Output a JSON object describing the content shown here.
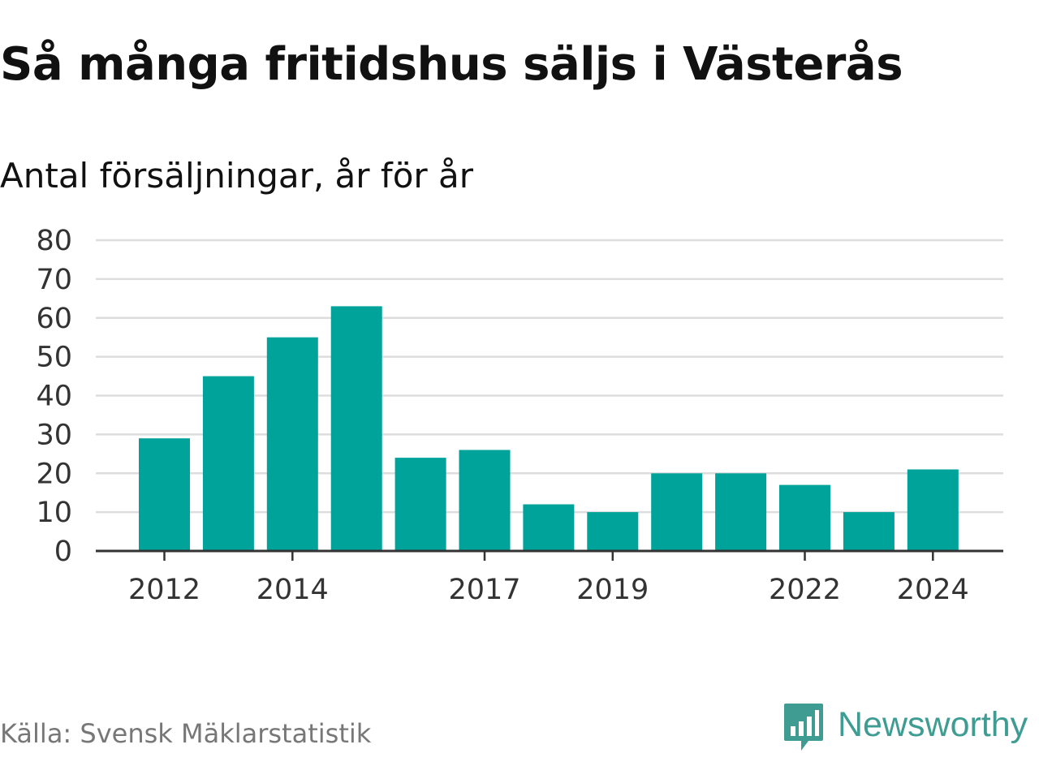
{
  "title": "Så många fritidshus säljs i Västerås",
  "subtitle": "Antal försäljningar, år för år",
  "source": "Källa: Svensk Mäklarstatistik",
  "brand": {
    "name": "Newsworthy",
    "color": "#3e9c92"
  },
  "colors": {
    "bar": "#00a39a",
    "grid": "#dddddd",
    "axis": "#333333"
  },
  "chart_data": {
    "type": "bar",
    "categories": [
      "2012",
      "2013",
      "2014",
      "2015",
      "2016",
      "2017",
      "2018",
      "2019",
      "2020",
      "2021",
      "2022",
      "2023",
      "2024"
    ],
    "x_tick_labels": [
      "2012",
      "",
      "2014",
      "",
      "",
      "2017",
      "",
      "2019",
      "",
      "",
      "2022",
      "",
      "2024"
    ],
    "values": [
      29,
      45,
      55,
      63,
      24,
      26,
      12,
      10,
      20,
      20,
      17,
      10,
      21
    ],
    "y_ticks": [
      0,
      10,
      20,
      30,
      40,
      50,
      60,
      70,
      80
    ],
    "ylim": [
      0,
      80
    ],
    "grid": true,
    "legend": "none"
  }
}
